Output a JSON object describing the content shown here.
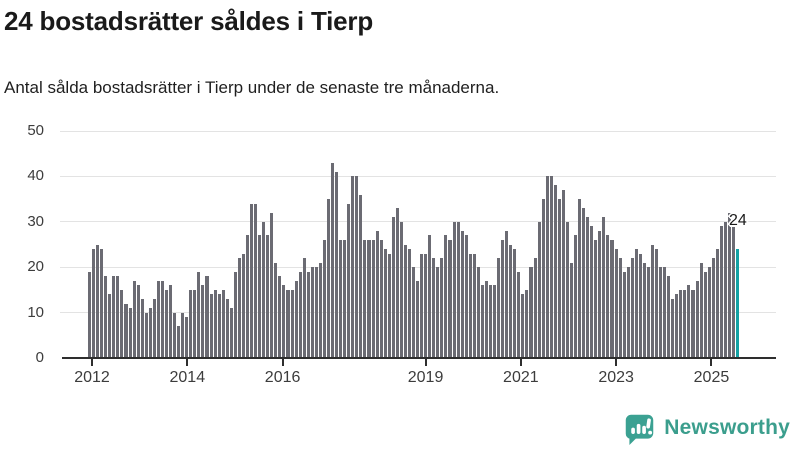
{
  "header": {
    "title": "24 bostadsrätter såldes i Tierp",
    "subtitle": "Antal sålda bostadsrätter i Tierp under de senaste tre månaderna."
  },
  "annotation": {
    "label": "24"
  },
  "branding": {
    "name": "Newsworthy",
    "icon": "newsworthy-speech-bubble-chart-icon",
    "color": "#3b9e8d"
  },
  "colors": {
    "bar": "#6b6b73",
    "highlight_bar": "#14a2a4",
    "grid": "#e3e3e3",
    "axis": "#2e2e2e",
    "text": "#1a1a1a"
  },
  "chart_data": {
    "type": "bar",
    "title": "24 bostadsrätter såldes i Tierp",
    "subtitle": "Antal sålda bostadsrätter i Tierp under de senaste tre månaderna.",
    "unit": "sålda bostadsrätter (rullande tre månader)",
    "start_month": "2012-01",
    "frequency": "monthly",
    "ylim": [
      0,
      50
    ],
    "y_ticks": [
      0,
      10,
      20,
      30,
      40,
      50
    ],
    "x_ticks": [
      2012,
      2014,
      2016,
      2019,
      2021,
      2023,
      2025
    ],
    "grid": "horizontal",
    "highlight_last": true,
    "last_value_label": "24",
    "values": [
      19,
      24,
      25,
      24,
      18,
      14,
      18,
      18,
      15,
      12,
      11,
      17,
      16,
      13,
      10,
      11,
      13,
      17,
      17,
      15,
      16,
      10,
      7,
      10,
      9,
      15,
      15,
      19,
      16,
      18,
      14,
      15,
      14,
      15,
      13,
      11,
      19,
      22,
      23,
      27,
      34,
      34,
      27,
      30,
      27,
      32,
      21,
      18,
      16,
      15,
      15,
      17,
      19,
      22,
      19,
      20,
      20,
      21,
      26,
      35,
      43,
      41,
      26,
      26,
      34,
      40,
      40,
      36,
      26,
      26,
      26,
      28,
      26,
      24,
      23,
      31,
      33,
      30,
      25,
      24,
      20,
      17,
      23,
      23,
      27,
      22,
      20,
      22,
      27,
      26,
      30,
      30,
      28,
      27,
      23,
      23,
      20,
      16,
      17,
      16,
      16,
      22,
      26,
      28,
      25,
      24,
      19,
      14,
      15,
      20,
      22,
      30,
      35,
      40,
      40,
      38,
      35,
      37,
      30,
      21,
      27,
      35,
      33,
      31,
      29,
      26,
      28,
      31,
      27,
      26,
      24,
      22,
      19,
      20,
      22,
      24,
      23,
      21,
      20,
      25,
      24,
      20,
      20,
      18,
      13,
      14,
      15,
      15,
      16,
      15,
      17,
      21,
      19,
      20,
      22,
      24,
      29,
      30,
      32,
      29,
      24
    ]
  }
}
